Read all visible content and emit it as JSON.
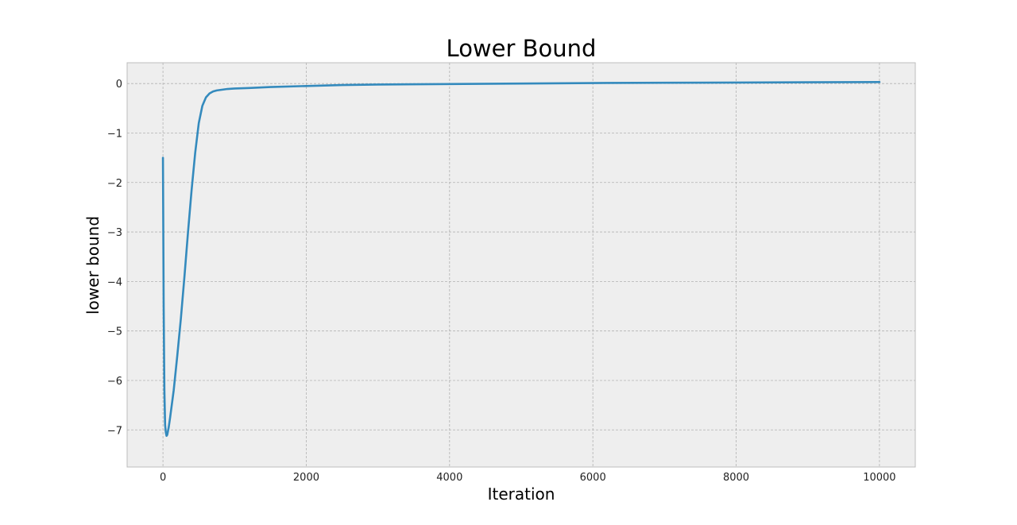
{
  "chart_data": {
    "type": "line",
    "title": "Lower Bound",
    "xlabel": "Iteration",
    "ylabel": "lower bound",
    "xlim": [
      -500,
      10500
    ],
    "ylim": [
      -7.75,
      0.42
    ],
    "xticks": [
      0,
      2000,
      4000,
      6000,
      8000,
      10000
    ],
    "xtick_labels": [
      "0",
      "2000",
      "4000",
      "6000",
      "8000",
      "10000"
    ],
    "yticks": [
      0,
      -1,
      -2,
      -3,
      -4,
      -5,
      -6,
      -7
    ],
    "ytick_labels": [
      "0",
      "−1",
      "−2",
      "−3",
      "−4",
      "−5",
      "−6",
      "−7"
    ],
    "grid": true,
    "colors": {
      "series": "#348ABD",
      "plot_background": "#EEEEEE",
      "frame": "#BCBCBC"
    },
    "series": [
      {
        "x": [
          0,
          10,
          20,
          30,
          40,
          50,
          60,
          80,
          100,
          150,
          200,
          250,
          300,
          350,
          400,
          450,
          500,
          550,
          600,
          650,
          700,
          750,
          800,
          850,
          900,
          1000,
          1200,
          1500,
          2000,
          2500,
          3000,
          4000,
          5000,
          6000,
          7000,
          8000,
          9000,
          10000
        ],
        "y": [
          -1.5,
          -4.5,
          -6.2,
          -6.9,
          -7.05,
          -7.12,
          -7.1,
          -6.95,
          -6.75,
          -6.2,
          -5.5,
          -4.75,
          -3.9,
          -3.0,
          -2.15,
          -1.4,
          -0.8,
          -0.45,
          -0.28,
          -0.2,
          -0.16,
          -0.14,
          -0.13,
          -0.12,
          -0.11,
          -0.1,
          -0.09,
          -0.07,
          -0.05,
          -0.03,
          -0.02,
          -0.01,
          0.0,
          0.01,
          0.015,
          0.02,
          0.025,
          0.03
        ]
      }
    ]
  }
}
